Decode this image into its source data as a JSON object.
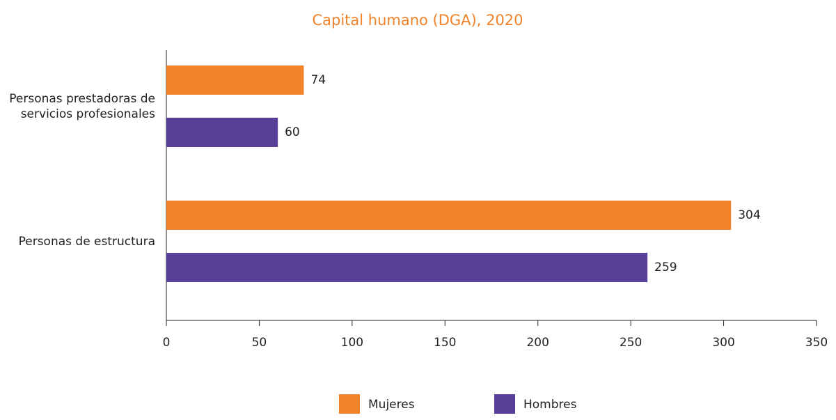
{
  "chart_data": {
    "type": "hbar",
    "title": "Capital humano (DGA), 2020",
    "categories": [
      "Personas prestadoras de servicios profesionales",
      "Personas de estructura"
    ],
    "series": [
      {
        "name": "Mujeres",
        "color": "#f0832a",
        "values": [
          74,
          304
        ]
      },
      {
        "name": "Hombres",
        "color": "#5a3f99",
        "values": [
          60,
          259
        ]
      }
    ],
    "xlim": [
      0,
      350
    ],
    "xticks": [
      0,
      50,
      100,
      150,
      200,
      250,
      300,
      350
    ]
  }
}
